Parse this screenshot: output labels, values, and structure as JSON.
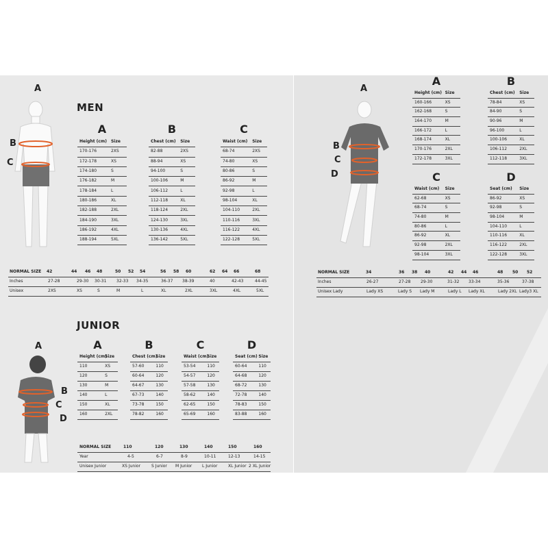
{
  "men": {
    "title": "MEN",
    "figure_labels": [
      "A",
      "B",
      "C"
    ],
    "tables": [
      {
        "letter": "A",
        "header": [
          "Height (cm)",
          "Size"
        ],
        "rows": [
          [
            "170-176",
            "2XS"
          ],
          [
            "172-178",
            "XS"
          ],
          [
            "174-180",
            "S"
          ],
          [
            "176-182",
            "M"
          ],
          [
            "178-184",
            "L"
          ],
          [
            "180-186",
            "XL"
          ],
          [
            "182-188",
            "2XL"
          ],
          [
            "184-190",
            "3XL"
          ],
          [
            "186-192",
            "4XL"
          ],
          [
            "188-194",
            "5XL"
          ]
        ]
      },
      {
        "letter": "B",
        "header": [
          "Chest (cm)",
          "Size"
        ],
        "rows": [
          [
            "82-88",
            "2XS"
          ],
          [
            "88-94",
            "XS"
          ],
          [
            "94-100",
            "S"
          ],
          [
            "100-106",
            "M"
          ],
          [
            "106-112",
            "L"
          ],
          [
            "112-118",
            "XL"
          ],
          [
            "118-124",
            "2XL"
          ],
          [
            "124-130",
            "3XL"
          ],
          [
            "130-136",
            "4XL"
          ],
          [
            "136-142",
            "5XL"
          ]
        ]
      },
      {
        "letter": "C",
        "header": [
          "Waist (cm)",
          "Size"
        ],
        "rows": [
          [
            "68-74",
            "2XS"
          ],
          [
            "74-80",
            "XS"
          ],
          [
            "80-86",
            "S"
          ],
          [
            "86-92",
            "M"
          ],
          [
            "92-98",
            "L"
          ],
          [
            "98-104",
            "XL"
          ],
          [
            "104-110",
            "2XL"
          ],
          [
            "110-116",
            "3XL"
          ],
          [
            "116-122",
            "4XL"
          ],
          [
            "122-128",
            "5XL"
          ]
        ]
      }
    ],
    "normal_size": {
      "header": [
        "NORMAL SIZE",
        "42",
        "44",
        "46",
        "48",
        "50",
        "52",
        "54",
        "56",
        "58",
        "60",
        "62",
        "64",
        "66",
        "68"
      ],
      "rows": [
        [
          "Inches",
          "27-28",
          "29-30",
          "30-31",
          "32-33",
          "34-35",
          "36-37",
          "38-39",
          "40",
          "42-43",
          "44-45"
        ],
        [
          "Unisex",
          "2XS",
          "XS",
          "S",
          "M",
          "L",
          "XL",
          "2XL",
          "3XL",
          "4XL",
          "5XL"
        ]
      ]
    }
  },
  "women": {
    "figure_labels": [
      "A",
      "B",
      "C",
      "D"
    ],
    "tables": [
      {
        "letter": "A",
        "header": [
          "Height (cm)",
          "Size"
        ],
        "rows": [
          [
            "160-166",
            "XS"
          ],
          [
            "162-168",
            "S"
          ],
          [
            "164-170",
            "M"
          ],
          [
            "166-172",
            "L"
          ],
          [
            "168-174",
            "XL"
          ],
          [
            "170-176",
            "2XL"
          ],
          [
            "172-178",
            "3XL"
          ]
        ]
      },
      {
        "letter": "B",
        "header": [
          "Chest (cm)",
          "Size"
        ],
        "rows": [
          [
            "78-84",
            "XS"
          ],
          [
            "84-90",
            "S"
          ],
          [
            "90-96",
            "M"
          ],
          [
            "96-100",
            "L"
          ],
          [
            "100-106",
            "XL"
          ],
          [
            "106-112",
            "2XL"
          ],
          [
            "112-118",
            "3XL"
          ]
        ]
      },
      {
        "letter": "C",
        "header": [
          "Waist (cm)",
          "Size"
        ],
        "rows": [
          [
            "62-68",
            "XS"
          ],
          [
            "68-74",
            "S"
          ],
          [
            "74-80",
            "M"
          ],
          [
            "80-86",
            "L"
          ],
          [
            "86-92",
            "XL"
          ],
          [
            "92-98",
            "2XL"
          ],
          [
            "98-104",
            "3XL"
          ]
        ]
      },
      {
        "letter": "D",
        "header": [
          "Seat (cm)",
          "Size"
        ],
        "rows": [
          [
            "86-92",
            "XS"
          ],
          [
            "92-98",
            "S"
          ],
          [
            "98-104",
            "M"
          ],
          [
            "104-110",
            "L"
          ],
          [
            "110-116",
            "XL"
          ],
          [
            "116-122",
            "2XL"
          ],
          [
            "122-128",
            "3XL"
          ]
        ]
      }
    ],
    "normal_size": {
      "header": [
        "NORMAL SIZE",
        "34",
        "36",
        "38",
        "40",
        "42",
        "44",
        "46",
        "48",
        "50",
        "52"
      ],
      "rows": [
        [
          "Inches",
          "26-27",
          "27-28",
          "29-30",
          "31-32",
          "33-34",
          "35-36",
          "37-38"
        ],
        [
          "Unisex Lady",
          "Lady XS",
          "Lady S",
          "Lady M",
          "Lady L",
          "Lady XL",
          "Lady 2XL",
          "Lady3 XL"
        ]
      ]
    }
  },
  "junior": {
    "title": "JUNIOR",
    "figure_labels": [
      "A",
      "B",
      "C",
      "D"
    ],
    "tables": [
      {
        "letter": "A",
        "header": [
          "Height (cm)",
          "Size"
        ],
        "rows": [
          [
            "110",
            "XS"
          ],
          [
            "120",
            "S"
          ],
          [
            "130",
            "M"
          ],
          [
            "140",
            "L"
          ],
          [
            "150",
            "XL"
          ],
          [
            "160",
            "2XL"
          ]
        ]
      },
      {
        "letter": "B",
        "header": [
          "Chest (cm)",
          "Size"
        ],
        "rows": [
          [
            "57-60",
            "110"
          ],
          [
            "60-64",
            "120"
          ],
          [
            "64-67",
            "130"
          ],
          [
            "67-73",
            "140"
          ],
          [
            "73-78",
            "150"
          ],
          [
            "78-82",
            "160"
          ]
        ]
      },
      {
        "letter": "C",
        "header": [
          "Waist (cm)",
          "Size"
        ],
        "rows": [
          [
            "53-54",
            "110"
          ],
          [
            "54-57",
            "120"
          ],
          [
            "57-58",
            "130"
          ],
          [
            "58-62",
            "140"
          ],
          [
            "62-65",
            "150"
          ],
          [
            "65-69",
            "160"
          ]
        ]
      },
      {
        "letter": "D",
        "header": [
          "Seat (cm)",
          "Size"
        ],
        "rows": [
          [
            "60-64",
            "110"
          ],
          [
            "64-68",
            "120"
          ],
          [
            "68-72",
            "130"
          ],
          [
            "72-78",
            "140"
          ],
          [
            "78-83",
            "150"
          ],
          [
            "83-88",
            "160"
          ]
        ]
      }
    ],
    "normal_size": {
      "header": [
        "NORMAL SIZE",
        "110",
        "120",
        "130",
        "140",
        "150",
        "160"
      ],
      "rows": [
        [
          "Year",
          "4-5",
          "6-7",
          "8-9",
          "10-11",
          "12-13",
          "14-15"
        ],
        [
          "Unisex Junior",
          "XS Junior",
          "S Junior",
          "M Junior",
          "L Junior",
          "XL Junior",
          "2 XL Junior"
        ]
      ]
    }
  }
}
